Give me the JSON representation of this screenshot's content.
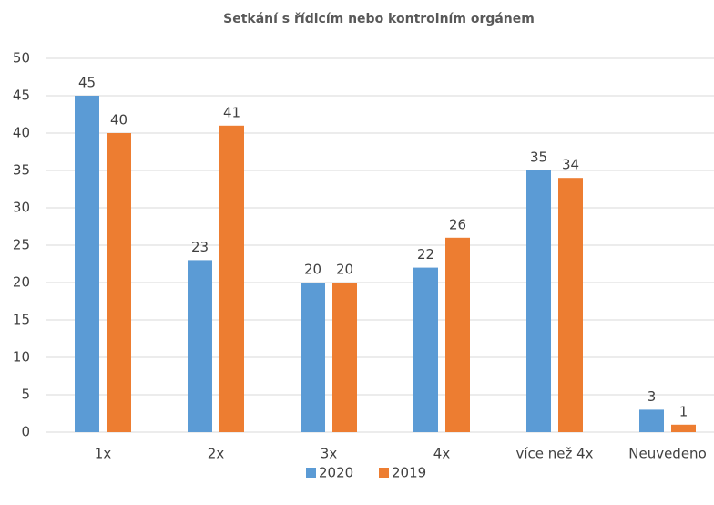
{
  "chart_data": {
    "type": "bar",
    "title": "Setkání s řídicím nebo kontrolním orgánem",
    "categories": [
      "1x",
      "2x",
      "3x",
      "4x",
      "více než 4x",
      "Neuvedeno"
    ],
    "series": [
      {
        "name": "2020",
        "color": "#5b9bd5",
        "values": [
          45,
          23,
          20,
          22,
          35,
          3
        ]
      },
      {
        "name": "2019",
        "color": "#ed7d31",
        "values": [
          40,
          41,
          20,
          26,
          34,
          1
        ]
      }
    ],
    "ylim": [
      0,
      50
    ],
    "yticks": [
      0,
      5,
      10,
      15,
      20,
      25,
      30,
      35,
      40,
      45,
      50
    ],
    "grid": true,
    "legend": "bottom"
  }
}
